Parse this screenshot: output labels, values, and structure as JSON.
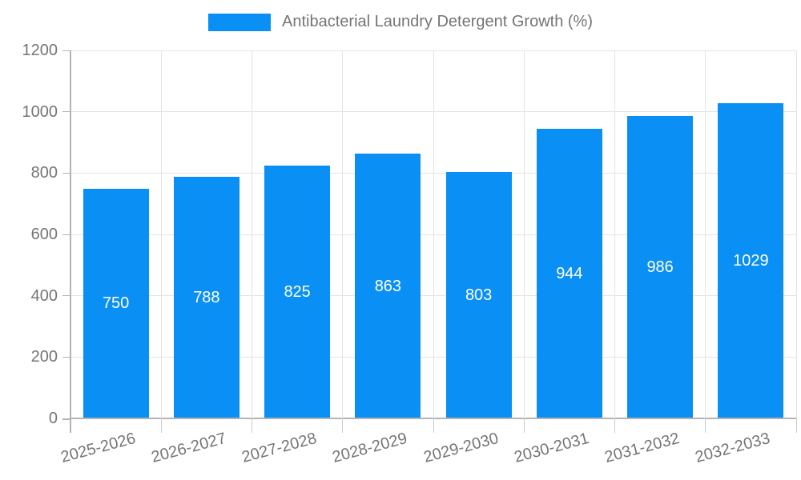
{
  "chart_data": {
    "type": "bar",
    "title": "Antibacterial Laundry Detergent Growth (%)",
    "legend": {
      "position": "top",
      "label": "Antibacterial Laundry Detergent Growth (%)"
    },
    "categories": [
      "2025-2026",
      "2026-2027",
      "2027-2028",
      "2028-2029",
      "2029-2030",
      "2030-2031",
      "2031-2032",
      "2032-2033"
    ],
    "series": [
      {
        "name": "Antibacterial Laundry Detergent Growth (%)",
        "values": [
          750,
          788,
          825,
          863,
          803,
          944,
          986,
          1029
        ]
      }
    ],
    "xlabel": "",
    "ylabel": "",
    "ylim": [
      0,
      1200
    ],
    "ytick_interval": 200,
    "ytick_labels": [
      "0",
      "200",
      "400",
      "600",
      "800",
      "1000",
      "1200"
    ],
    "grid": true,
    "bar_value_labels_inside": true,
    "x_label_rotation_deg": -15,
    "colors": {
      "bar": "#0a8ff4",
      "bar_value_text": "#ffffff",
      "axis_text": "#757575",
      "grid_line": "#e3e3e3",
      "axis_line": "#b3b3b3",
      "background": "#ffffff"
    }
  }
}
